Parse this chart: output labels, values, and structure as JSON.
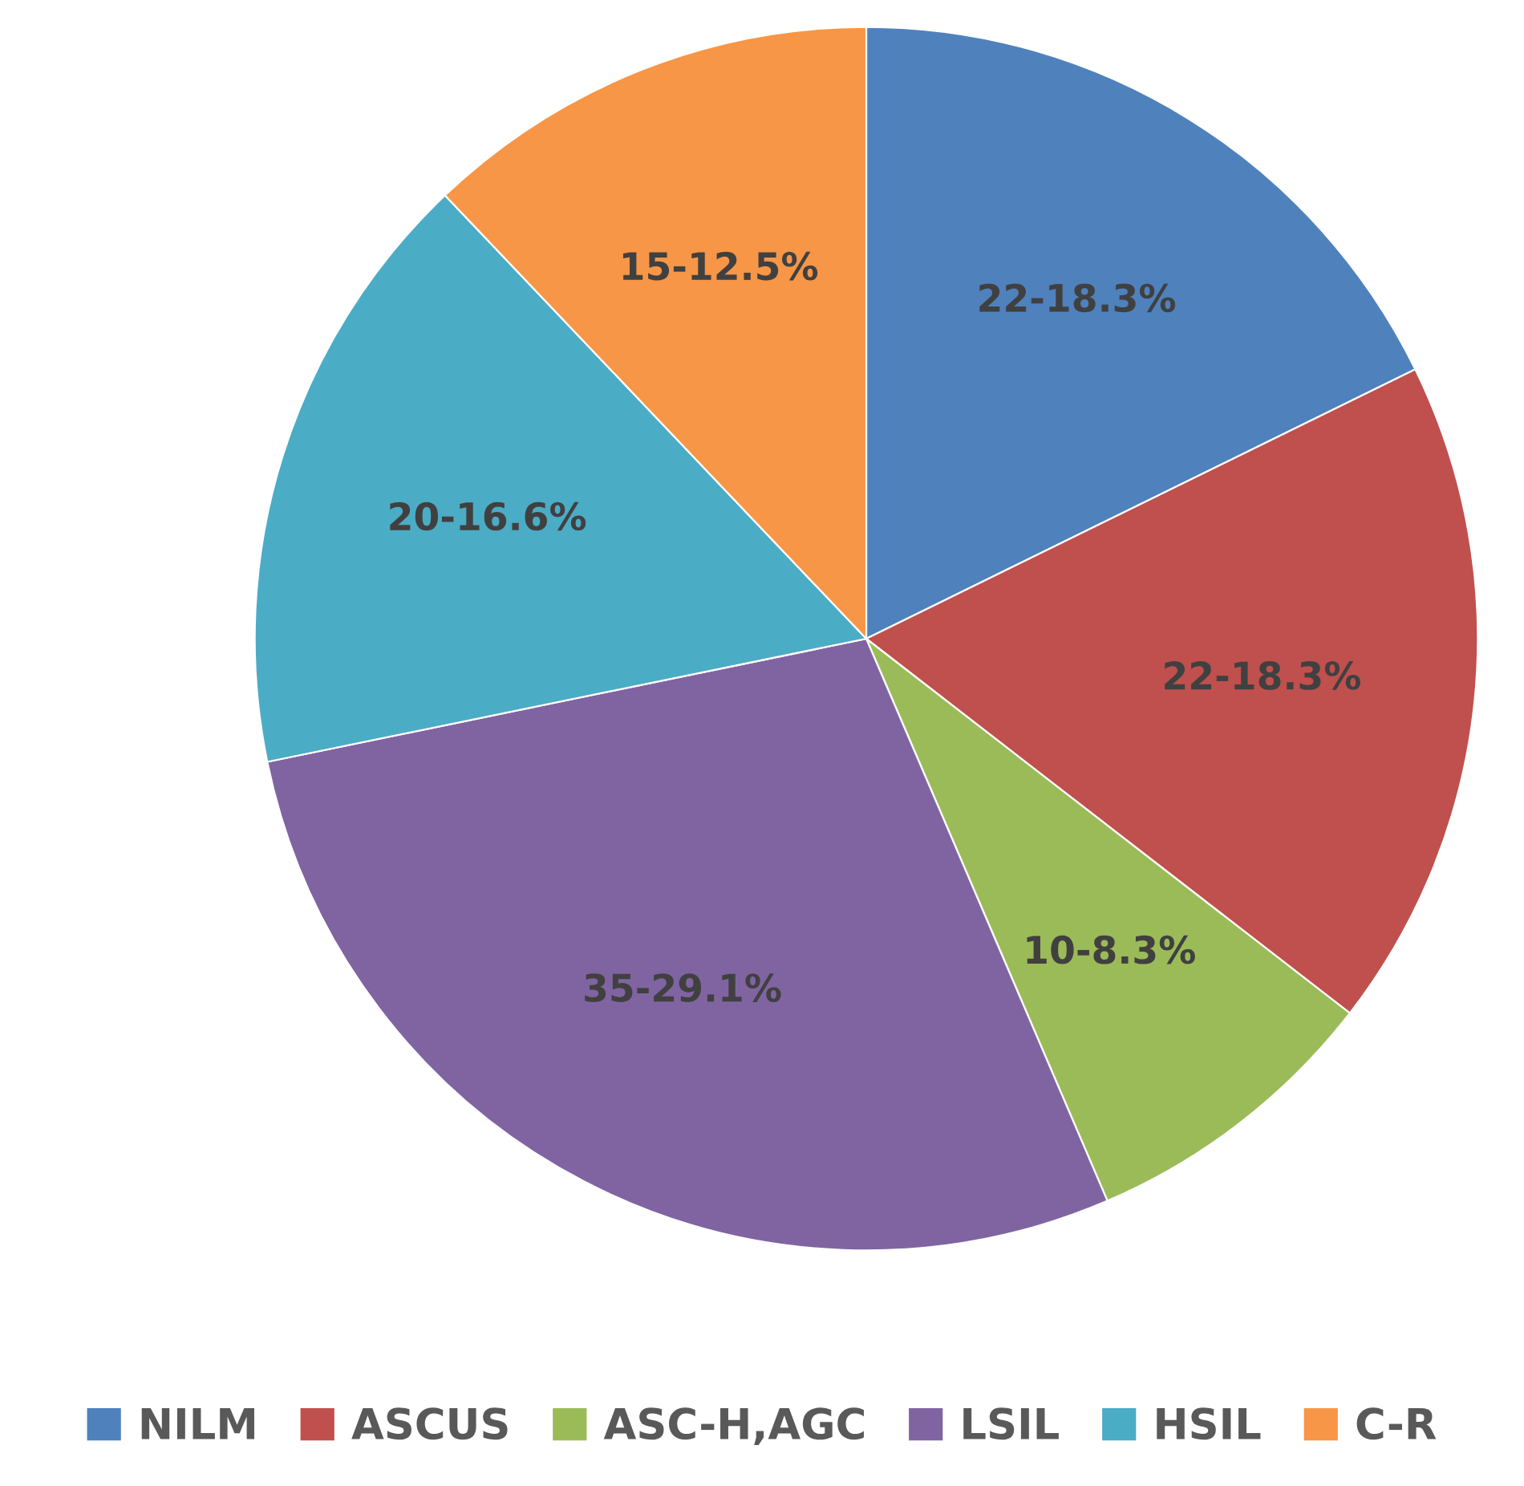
{
  "chart_data": {
    "type": "pie",
    "categories": [
      "NILM",
      "ASCUS",
      "ASC-H,AGC",
      "LSIL",
      "HSIL",
      "C-R"
    ],
    "values": [
      22,
      22,
      10,
      35,
      20,
      15
    ],
    "value_labels": [
      "22-18.3%",
      "22-18.3%",
      "10-8.3%",
      "35-29.1%",
      "20-16.6%",
      "15-12.5%"
    ],
    "colors": [
      "#4f81bd",
      "#c0504d",
      "#9bbb59",
      "#8064a2",
      "#4bacc6",
      "#f79646"
    ],
    "legend": "bottom"
  }
}
